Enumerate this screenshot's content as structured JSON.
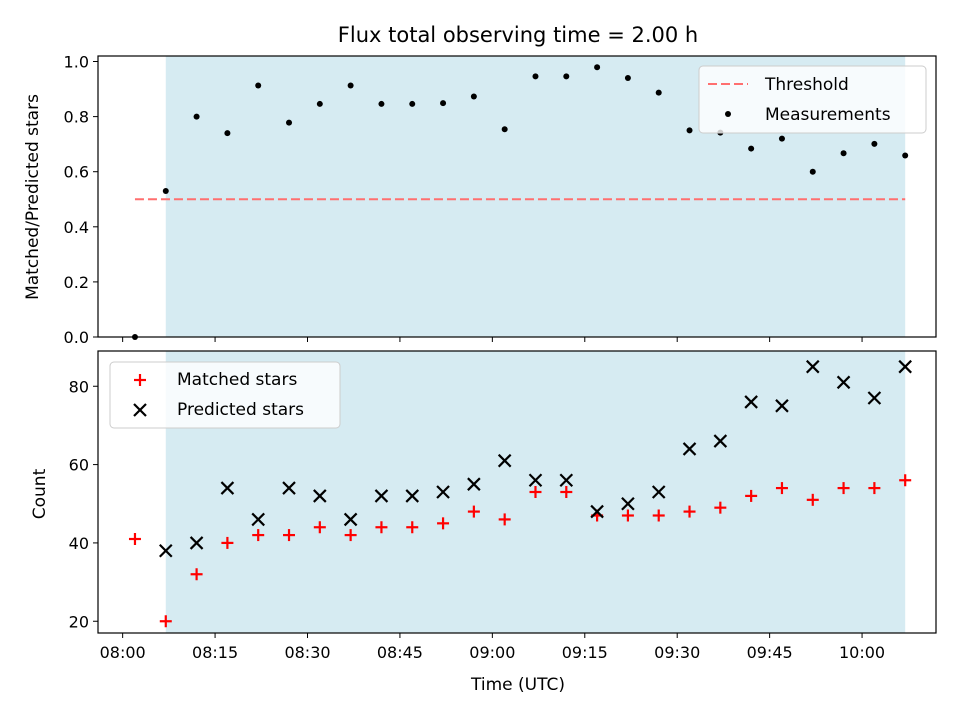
{
  "chart_data": [
    {
      "type": "scatter",
      "title": "Flux total observing time = 2.00 h",
      "xlabel": "",
      "ylabel": "Matched/Predicted stars",
      "ylim": [
        0.0,
        1.02
      ],
      "yticks": [
        "0.0",
        "0.2",
        "0.4",
        "0.6",
        "0.8",
        "1.0"
      ],
      "x": [
        "08:02",
        "08:07",
        "08:12",
        "08:17",
        "08:22",
        "08:27",
        "08:32",
        "08:37",
        "08:42",
        "08:47",
        "08:52",
        "08:57",
        "09:02",
        "09:07",
        "09:12",
        "09:17",
        "09:22",
        "09:27",
        "09:32",
        "09:37",
        "09:42",
        "09:47",
        "09:52",
        "09:57",
        "10:02",
        "10:07"
      ],
      "series": [
        {
          "name": "Measurements",
          "values": [
            0.0,
            0.53,
            0.8,
            0.74,
            0.913,
            0.778,
            0.846,
            0.913,
            0.846,
            0.846,
            0.849,
            0.873,
            0.754,
            0.946,
            0.946,
            0.979,
            0.94,
            0.887,
            0.75,
            0.742,
            0.684,
            0.72,
            0.6,
            0.667,
            0.701,
            0.659
          ]
        },
        {
          "name": "Threshold",
          "values": [
            0.5,
            0.5
          ]
        }
      ],
      "shaded_span": [
        "08:07",
        "10:07"
      ],
      "legend": "top-right",
      "colors": {
        "threshold": "#ff6f6f",
        "measurements": "#000000",
        "span": "#add8e6"
      }
    },
    {
      "type": "scatter",
      "title": "",
      "xlabel": "Time (UTC)",
      "ylabel": "Count",
      "ylim": [
        17,
        89
      ],
      "yticks": [
        "20",
        "40",
        "60",
        "80"
      ],
      "xticks": [
        "08:00",
        "08:15",
        "08:30",
        "08:45",
        "09:00",
        "09:15",
        "09:30",
        "09:45",
        "10:00"
      ],
      "x": [
        "08:02",
        "08:07",
        "08:12",
        "08:17",
        "08:22",
        "08:27",
        "08:32",
        "08:37",
        "08:42",
        "08:47",
        "08:52",
        "08:57",
        "09:02",
        "09:07",
        "09:12",
        "09:17",
        "09:22",
        "09:27",
        "09:32",
        "09:37",
        "09:42",
        "09:47",
        "09:52",
        "09:57",
        "10:02",
        "10:07"
      ],
      "series": [
        {
          "name": "Matched stars",
          "values": [
            41,
            20,
            32,
            40,
            42,
            42,
            44,
            42,
            44,
            44,
            45,
            48,
            46,
            53,
            53,
            47,
            47,
            47,
            48,
            49,
            52,
            54,
            51,
            54,
            54,
            56
          ]
        },
        {
          "name": "Predicted stars",
          "values": [
            null,
            38,
            40,
            54,
            46,
            54,
            52,
            46,
            52,
            52,
            53,
            55,
            61,
            56,
            56,
            48,
            50,
            53,
            64,
            66,
            76,
            75,
            85,
            81,
            77,
            85
          ]
        }
      ],
      "shaded_span": [
        "08:07",
        "10:07"
      ],
      "legend": "top-left",
      "colors": {
        "matched": "#ff0000",
        "predicted": "#000000",
        "span": "#add8e6"
      }
    }
  ]
}
